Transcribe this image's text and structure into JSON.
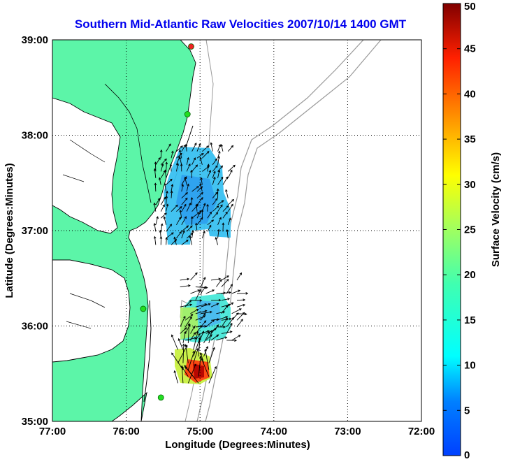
{
  "chart_data": {
    "type": "map_vector",
    "title": "Southern Mid-Atlantic Raw Velocities 2007/10/14 1400 GMT",
    "xlabel": "Longitude (Degrees:Minutes)",
    "ylabel": "Latitude (Degrees:Minutes)",
    "colorbar_label": "Surface Velocity (cm/s)",
    "xlim": [
      -77,
      -72
    ],
    "ylim": [
      35,
      39
    ],
    "x_ticks": [
      {
        "value": -77,
        "label": "77:00"
      },
      {
        "value": -76,
        "label": "76:00"
      },
      {
        "value": -75,
        "label": "75:00"
      },
      {
        "value": -74,
        "label": "74:00"
      },
      {
        "value": -73,
        "label": "73:00"
      },
      {
        "value": -72,
        "label": "72:00"
      }
    ],
    "y_ticks": [
      {
        "value": 35,
        "label": "35:00"
      },
      {
        "value": 36,
        "label": "36:00"
      },
      {
        "value": 37,
        "label": "37:00"
      },
      {
        "value": 38,
        "label": "38:00"
      },
      {
        "value": 39,
        "label": "39:00"
      }
    ],
    "colorbar_range": [
      0,
      50
    ],
    "colorbar_ticks": [
      {
        "value": 0,
        "label": "0"
      },
      {
        "value": 5,
        "label": "5"
      },
      {
        "value": 10,
        "label": "10"
      },
      {
        "value": 15,
        "label": "15"
      },
      {
        "value": 20,
        "label": "20"
      },
      {
        "value": 25,
        "label": "25"
      },
      {
        "value": 30,
        "label": "30"
      },
      {
        "value": 35,
        "label": "35"
      },
      {
        "value": 40,
        "label": "40"
      },
      {
        "value": 45,
        "label": "45"
      },
      {
        "value": 50,
        "label": "50"
      }
    ],
    "colormap": "jet",
    "grid": true,
    "grid_style": "dotted",
    "colors": {
      "land": "#5cf5a8",
      "ocean": "#ffffff",
      "coastline": "#000000",
      "bathymetry": "#9a9a9a",
      "title": "#0000ee",
      "arrow": "#000000",
      "station": "#22dd22",
      "station_highlight": "#ee2222"
    },
    "stations": [
      {
        "lon": -75.12,
        "lat": 38.93,
        "status": "highlight"
      },
      {
        "lon": -75.17,
        "lat": 38.22,
        "status": "active"
      },
      {
        "lon": -75.77,
        "lat": 36.18,
        "status": "active"
      },
      {
        "lon": -75.53,
        "lat": 35.25,
        "status": "active"
      }
    ],
    "velocity_regions": [
      {
        "name": "north",
        "lon_range": [
          -75.6,
          -74.6
        ],
        "lat_range": [
          36.85,
          37.9
        ],
        "speed_range": [
          8,
          15
        ],
        "direction_deg": 20
      },
      {
        "name": "middle",
        "lon_range": [
          -75.27,
          -74.5
        ],
        "lat_range": [
          35.85,
          36.55
        ],
        "speed_range": [
          10,
          22
        ],
        "direction_deg": 60
      },
      {
        "name": "south",
        "lon_range": [
          -75.3,
          -74.85
        ],
        "lat_range": [
          35.4,
          35.85
        ],
        "speed_range": [
          18,
          48
        ],
        "direction_deg": 355
      }
    ]
  }
}
